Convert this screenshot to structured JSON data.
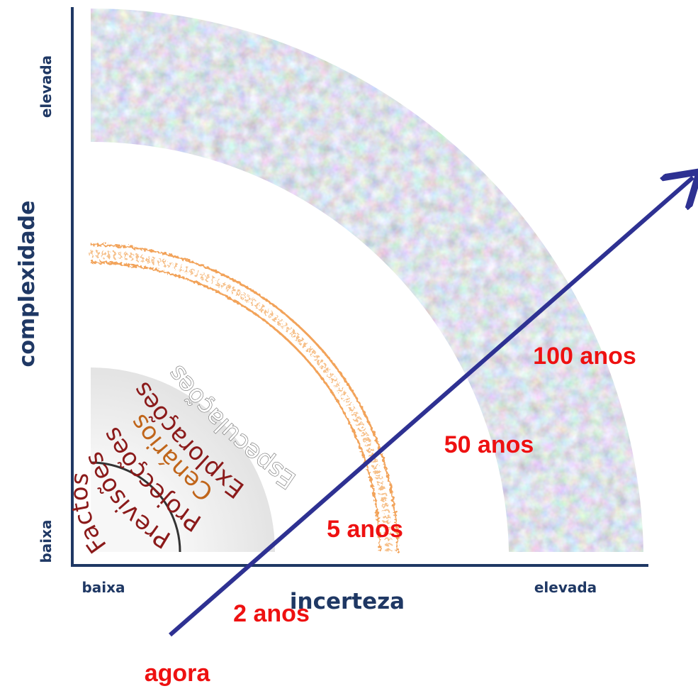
{
  "axes": {
    "x_title": "incerteza",
    "y_title": "complexidade",
    "x_low": "baixa",
    "x_high": "elevada",
    "y_low": "baixa",
    "y_high": "elevada"
  },
  "rings": {
    "factos": "Factos",
    "previsoes": "Previsões",
    "projeccoes": "Projecções",
    "cenarios": "Cenários",
    "exploracoes": "Explorações",
    "especulacoes": "Especulações"
  },
  "arrow": {
    "start_label": "agora",
    "marks": [
      "2 anos",
      "5 anos",
      "50 anos",
      "100 anos"
    ]
  },
  "colors": {
    "axis": "#1f3864",
    "arrow": "#2e3192",
    "time_labels": "#ee1111",
    "ring_text": "#8b1a1a",
    "cenarios_text": "#c0651a",
    "cenarios_band": "#f2a35a",
    "previsoes_band": "#ececec"
  }
}
